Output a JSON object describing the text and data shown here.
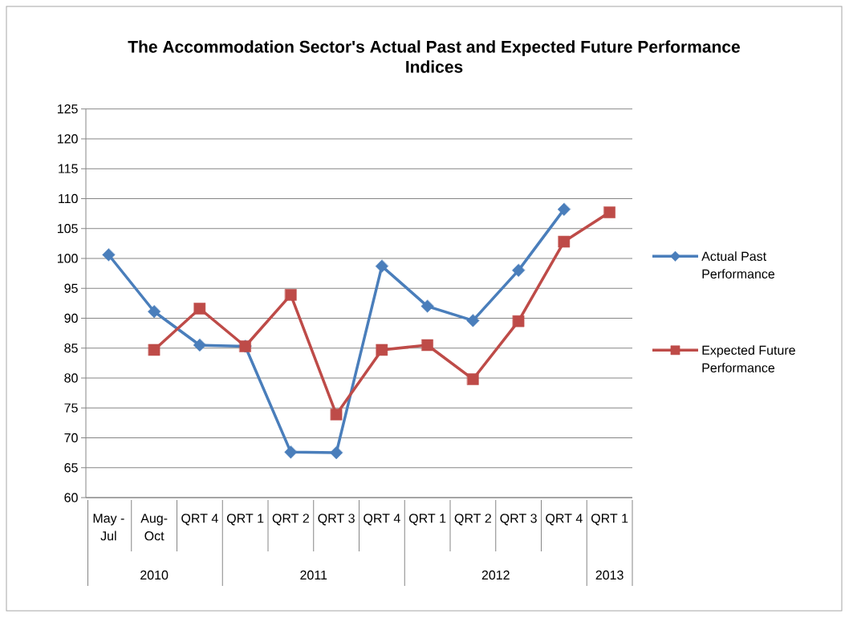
{
  "chart_data": {
    "type": "line",
    "title": "The Accommodation Sector's Actual Past and Expected Future Performance Indices",
    "categories": [
      "May - Jul",
      "Aug- Oct",
      "QRT 4",
      "QRT 1",
      "QRT 2",
      "QRT 3",
      "QRT 4",
      "QRT 1",
      "QRT 2",
      "QRT 3",
      "QRT 4",
      "QRT 1"
    ],
    "series": [
      {
        "name": "Actual Past Performance",
        "color": "#4a7ebb",
        "marker": "diamond",
        "values": [
          100.6,
          91.1,
          85.5,
          85.3,
          67.6,
          67.5,
          98.7,
          92.0,
          89.6,
          98.0,
          108.2,
          null
        ]
      },
      {
        "name": "Expected Future Performance",
        "color": "#be4b48",
        "marker": "square",
        "values": [
          null,
          84.7,
          91.6,
          85.3,
          93.9,
          73.9,
          84.7,
          85.5,
          79.8,
          89.5,
          102.8,
          107.7
        ]
      }
    ],
    "ylim": [
      60,
      125
    ],
    "yticks": [
      60,
      65,
      70,
      75,
      80,
      85,
      90,
      95,
      100,
      105,
      110,
      115,
      120,
      125
    ],
    "grid": "y",
    "legend": "right",
    "annotations": [
      "2010",
      "2011",
      "2012",
      "2013"
    ]
  }
}
